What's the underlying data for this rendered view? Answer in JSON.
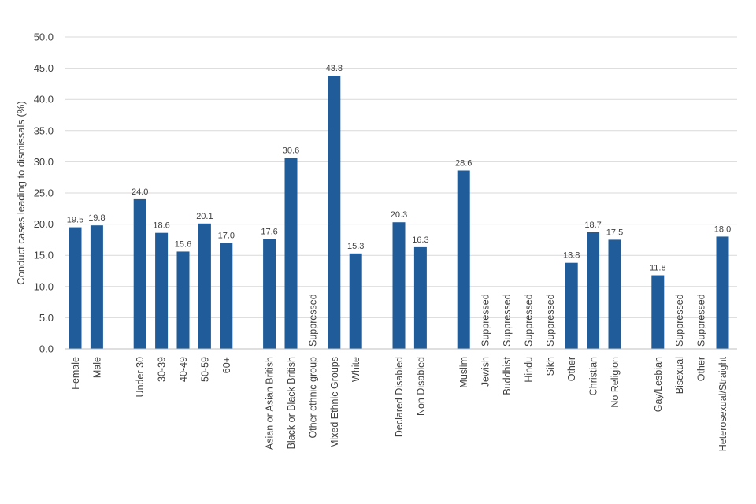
{
  "chart_data": {
    "type": "bar",
    "ylabel": "Conduct cases leading to dismissals (%)",
    "ylim": [
      0,
      50
    ],
    "yticks": [
      "0.0",
      "5.0",
      "10.0",
      "15.0",
      "20.0",
      "25.0",
      "30.0",
      "35.0",
      "40.0",
      "45.0",
      "50.0"
    ],
    "grid": true,
    "bar_color": "#1F5C99",
    "suppressed_text": "Suppressed",
    "groups": [
      {
        "categories": [
          "Female",
          "Male"
        ],
        "values": [
          19.5,
          19.8
        ],
        "labels": [
          "19.5",
          "19.8"
        ]
      },
      {
        "categories": [
          "Under 30",
          "30-39",
          "40-49",
          "50-59",
          "60+"
        ],
        "values": [
          24.0,
          18.6,
          15.6,
          20.1,
          17.0
        ],
        "labels": [
          "24.0",
          "18.6",
          "15.6",
          "20.1",
          "17.0"
        ]
      },
      {
        "categories": [
          "Asian or Asian British",
          "Black or Black British",
          "Other ethnic group",
          "Mixed Ethnic Groups",
          "White"
        ],
        "values": [
          17.6,
          30.6,
          null,
          43.8,
          15.3
        ],
        "labels": [
          "17.6",
          "30.6",
          null,
          "43.8",
          "15.3"
        ]
      },
      {
        "categories": [
          "Declared Disabled",
          "Non Disabled"
        ],
        "values": [
          20.3,
          16.3
        ],
        "labels": [
          "20.3",
          "16.3"
        ]
      },
      {
        "categories": [
          "Muslim",
          "Jewish",
          "Buddhist",
          "Hindu",
          "Sikh",
          "Other",
          "Christian",
          "No Religion"
        ],
        "values": [
          28.6,
          null,
          null,
          null,
          null,
          13.8,
          18.7,
          17.5
        ],
        "labels": [
          "28.6",
          null,
          null,
          null,
          null,
          "13.8",
          "18.7",
          "17.5"
        ]
      },
      {
        "categories": [
          "Gay/Lesbian",
          "Bisexual",
          "Other",
          "Heterosexual/Straight"
        ],
        "values": [
          11.8,
          null,
          null,
          18.0
        ],
        "labels": [
          "11.8",
          null,
          null,
          "18.0"
        ]
      }
    ]
  }
}
